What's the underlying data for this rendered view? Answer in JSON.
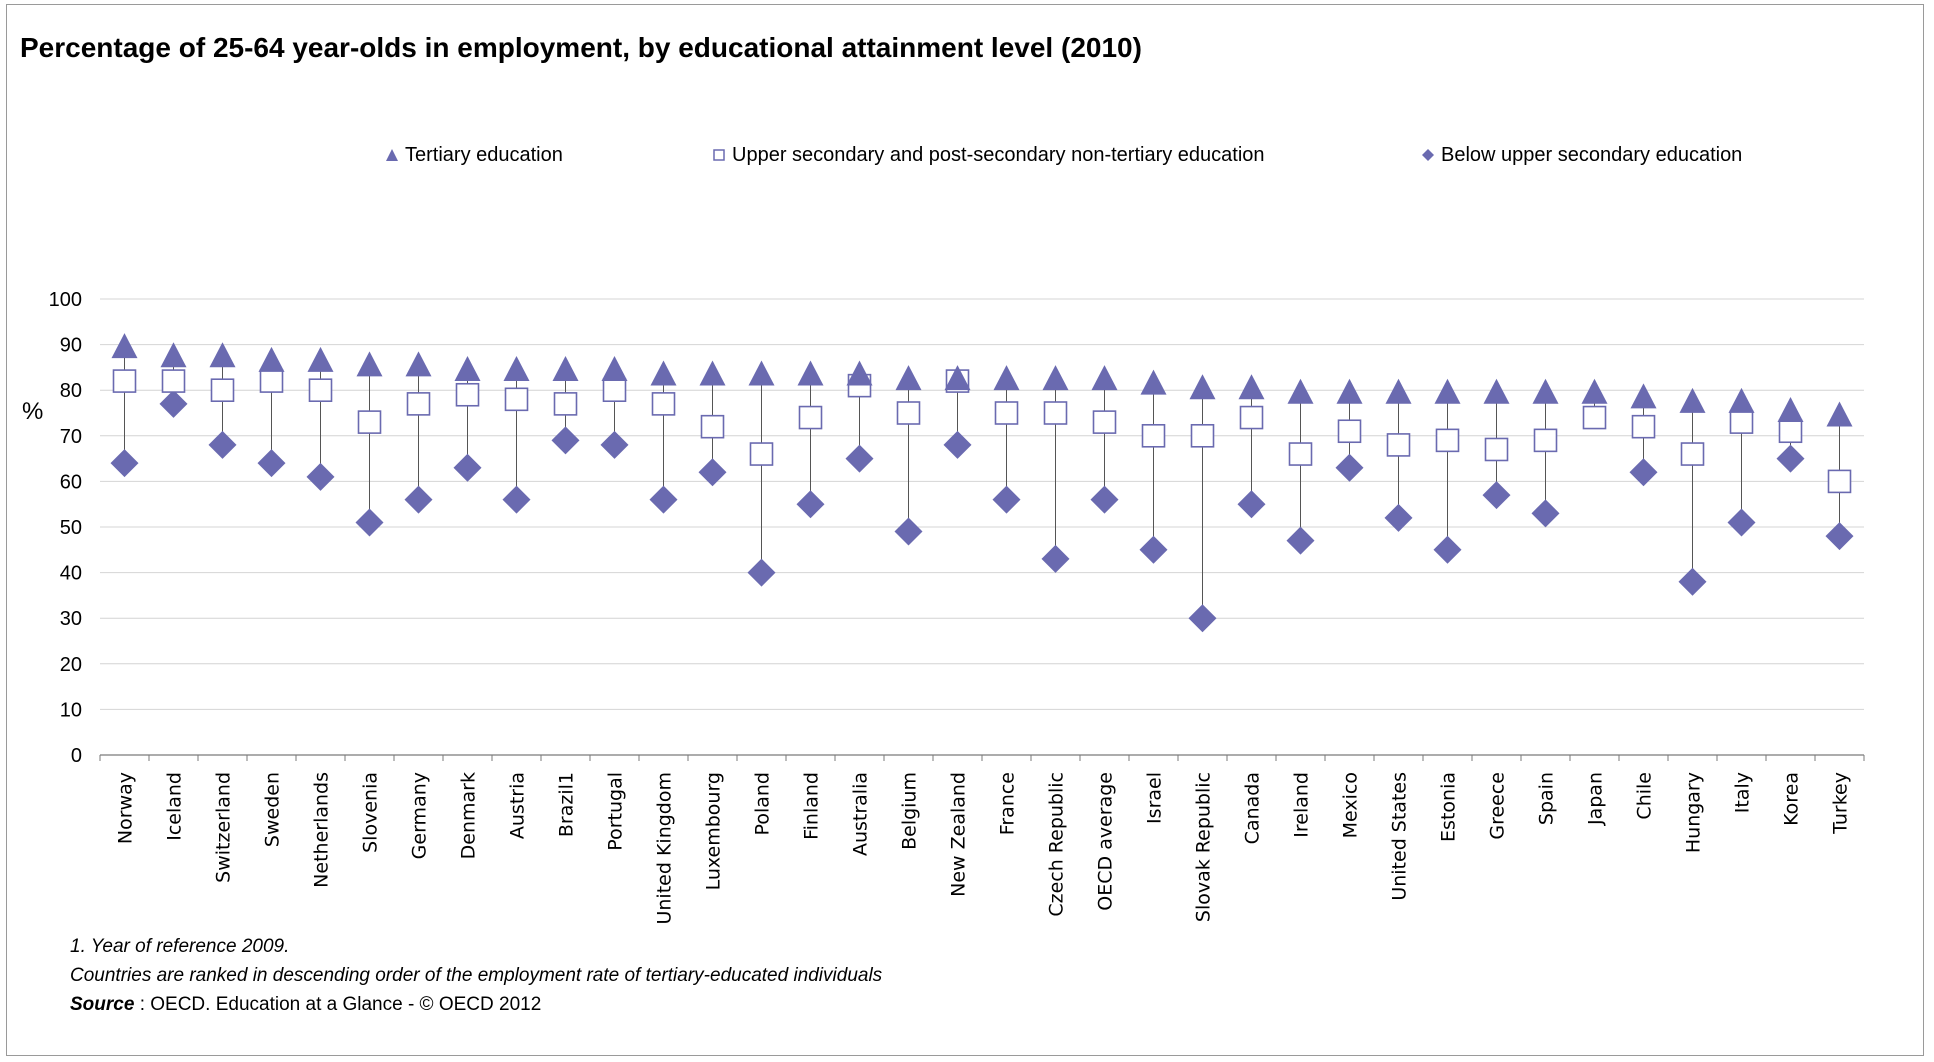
{
  "chart_data": {
    "type": "scatter",
    "title": "Percentage of 25-64 year-olds in employment, by educational attainment level (2010)",
    "ylabel": "%",
    "ylim": [
      0,
      100
    ],
    "yticks": [
      0,
      10,
      20,
      30,
      40,
      50,
      60,
      70,
      80,
      90,
      100
    ],
    "grid": true,
    "legend_position": "top",
    "categories": [
      "Norway",
      "Iceland",
      "Switzerland",
      "Sweden",
      "Netherlands",
      "Slovenia",
      "Germany",
      "Denmark",
      "Austria",
      "Brazil1",
      "Portugal",
      "United Kingdom",
      "Luxembourg",
      "Poland",
      "Finland",
      "Australia",
      "Belgium",
      "New Zealand",
      "France",
      "Czech Republic",
      "OECD average",
      "Israel",
      "Slovak Republic",
      "Canada",
      "Ireland",
      "Mexico",
      "United States",
      "Estonia",
      "Greece",
      "Spain",
      "Japan",
      "Chile",
      "Hungary",
      "Italy",
      "Korea",
      "Turkey"
    ],
    "series": [
      {
        "name": "Tertiary education",
        "marker": "triangle",
        "color": "#6a6ab0",
        "values": [
          89,
          87,
          87,
          86,
          86,
          85,
          85,
          84,
          84,
          84,
          84,
          83,
          83,
          83,
          83,
          83,
          82,
          82,
          82,
          82,
          82,
          81,
          80,
          80,
          79,
          79,
          79,
          79,
          79,
          79,
          79,
          78,
          77,
          77,
          75,
          74
        ]
      },
      {
        "name": "Upper secondary and post-secondary non-tertiary education",
        "marker": "open-square",
        "color": "#6a6ab0",
        "values": [
          82,
          82,
          80,
          82,
          80,
          73,
          77,
          79,
          78,
          77,
          80,
          77,
          72,
          66,
          74,
          81,
          75,
          82,
          75,
          75,
          73,
          70,
          70,
          74,
          66,
          71,
          68,
          69,
          67,
          69,
          74,
          72,
          66,
          73,
          71,
          60
        ]
      },
      {
        "name": "Below upper secondary education",
        "marker": "diamond",
        "color": "#6a6ab0",
        "values": [
          64,
          77,
          68,
          64,
          61,
          51,
          56,
          63,
          56,
          69,
          68,
          56,
          62,
          40,
          55,
          65,
          49,
          68,
          56,
          43,
          56,
          45,
          30,
          55,
          47,
          63,
          52,
          45,
          57,
          53,
          null,
          62,
          38,
          51,
          65,
          48
        ]
      }
    ]
  },
  "legend": [
    {
      "label": "Tertiary education",
      "marker": "triangle"
    },
    {
      "label": "Upper secondary and post-secondary non-tertiary education",
      "marker": "open-square"
    },
    {
      "label": "Below  upper secondary education",
      "marker": "diamond"
    }
  ],
  "footnotes": {
    "note1": "1. Year of reference 2009.",
    "note2": "Countries are ranked in descending order of the employment rate  of tertiary-educated individuals",
    "source_label": "Source",
    "source_text": " : OECD. Education at a Glance - © OECD 2012"
  }
}
